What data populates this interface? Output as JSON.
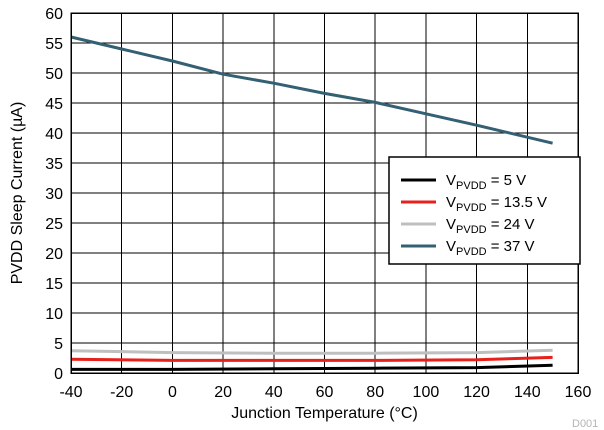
{
  "chart_data": {
    "type": "line",
    "xlabel": "Junction Temperature (°C)",
    "ylabel": "PVDD Sleep Current (µA)",
    "xlim": [
      -40,
      160
    ],
    "ylim": [
      0,
      60
    ],
    "x_ticks": [
      -40,
      -20,
      0,
      20,
      40,
      60,
      80,
      100,
      120,
      140,
      160
    ],
    "y_ticks": [
      0,
      5,
      10,
      15,
      20,
      25,
      30,
      35,
      40,
      45,
      50,
      55,
      60
    ],
    "grid": true,
    "legend_position": "right",
    "series": [
      {
        "name": "VPVDD = 5 V",
        "label_main": "V",
        "label_sub": "PVDD",
        "label_rest": " = 5 V",
        "color": "#000000",
        "x": [
          -40,
          0,
          40,
          80,
          120,
          150
        ],
        "y": [
          0.6,
          0.6,
          0.7,
          0.8,
          0.9,
          1.3
        ]
      },
      {
        "name": "VPVDD = 13.5 V",
        "label_main": "V",
        "label_sub": "PVDD",
        "label_rest": " = 13.5 V",
        "color": "#e8201c",
        "x": [
          -40,
          0,
          40,
          80,
          120,
          150
        ],
        "y": [
          2.3,
          2.1,
          2.1,
          2.1,
          2.2,
          2.6
        ]
      },
      {
        "name": "VPVDD = 24 V",
        "label_main": "V",
        "label_sub": "PVDD",
        "label_rest": " = 24 V",
        "color": "#bfbfbf",
        "x": [
          -40,
          0,
          40,
          80,
          120,
          150
        ],
        "y": [
          3.7,
          3.4,
          3.3,
          3.3,
          3.4,
          3.8
        ]
      },
      {
        "name": "VPVDD = 37 V",
        "label_main": "V",
        "label_sub": "PVDD",
        "label_rest": " = 37 V",
        "color": "#336073",
        "x": [
          -40,
          -20,
          0,
          20,
          40,
          60,
          80,
          100,
          120,
          150
        ],
        "y": [
          56,
          54,
          52,
          49.8,
          48.3,
          46.6,
          45.1,
          43.2,
          41.3,
          38.3
        ]
      }
    ],
    "watermark": "D001"
  }
}
